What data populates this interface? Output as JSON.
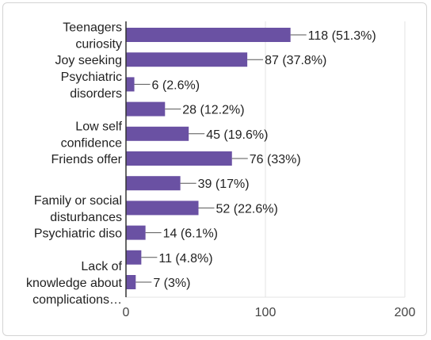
{
  "colors": {
    "bar": "#6a51a3",
    "leader": "#555555",
    "axis": "#333333",
    "grid": "#e3e3e3"
  },
  "chart_data": {
    "type": "bar",
    "orientation": "horizontal",
    "title": "",
    "xlabel": "",
    "ylabel": "",
    "xlim": [
      0,
      200
    ],
    "xticks": [
      "0",
      "100",
      "200"
    ],
    "grid": true,
    "legend": "none",
    "bars": [
      {
        "label": [
          "Teenagers",
          "curiosity"
        ],
        "value": 118,
        "data_label": "118 (51.3%)"
      },
      {
        "label": [
          "Joy seeking"
        ],
        "value": 87,
        "data_label": "87 (37.8%)"
      },
      {
        "label": [
          "Psychiatric",
          "disorders"
        ],
        "value": 6,
        "data_label": "6 (2.6%)"
      },
      {
        "label": [],
        "value": 28,
        "data_label": "28 (12.2%)"
      },
      {
        "label": [
          "Low self",
          "confidence"
        ],
        "value": 45,
        "data_label": "45 (19.6%)"
      },
      {
        "label": [
          "Friends offer"
        ],
        "value": 76,
        "data_label": "76 (33%)"
      },
      {
        "label": [],
        "value": 39,
        "data_label": "39 (17%)"
      },
      {
        "label": [
          "Family or social",
          "disturbances"
        ],
        "value": 52,
        "data_label": "52 (22.6%)"
      },
      {
        "label": [
          "Psychiatric diso"
        ],
        "value": 14,
        "data_label": "14 (6.1%)"
      },
      {
        "label": [],
        "value": 11,
        "data_label": "11 (4.8%)"
      },
      {
        "label": [
          "Lack of",
          "knowledge about",
          "complications…"
        ],
        "value": 7,
        "data_label": "7 (3%)"
      }
    ]
  }
}
